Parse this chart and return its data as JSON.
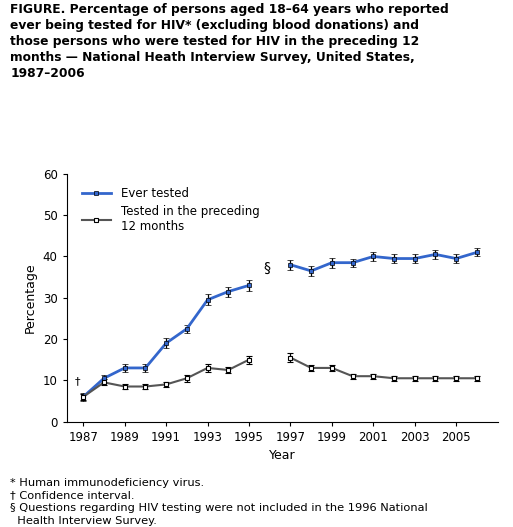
{
  "title_lines": [
    "FIGURE. Percentage of persons aged 18–64 years who reported",
    "ever being tested for HIV* (excluding blood donations) and",
    "those persons who were tested for HIV in the preceding 12",
    "months — National Heath Interview Survey, United States,",
    "1987–2006"
  ],
  "xlabel": "Year",
  "ylabel": "Percentage",
  "ylim": [
    0,
    60
  ],
  "yticks": [
    0,
    10,
    20,
    30,
    40,
    50,
    60
  ],
  "xticks": [
    1987,
    1989,
    1991,
    1993,
    1995,
    1997,
    1999,
    2001,
    2003,
    2005
  ],
  "xlim": [
    1986.2,
    2007.0
  ],
  "ever_tested": {
    "years": [
      1987,
      1988,
      1989,
      1990,
      1991,
      1992,
      1993,
      1994,
      1995,
      1997,
      1998,
      1999,
      2000,
      2001,
      2002,
      2003,
      2004,
      2005,
      2006
    ],
    "values": [
      6.0,
      10.5,
      13.0,
      13.0,
      19.0,
      22.5,
      29.5,
      31.5,
      33.0,
      38.0,
      36.5,
      38.5,
      38.5,
      40.0,
      39.5,
      39.5,
      40.5,
      39.5,
      41.0
    ],
    "err_low": [
      1.0,
      0.8,
      0.9,
      0.9,
      1.2,
      1.0,
      1.3,
      1.2,
      1.3,
      1.2,
      1.3,
      1.2,
      1.0,
      1.1,
      1.0,
      1.0,
      1.1,
      1.0,
      1.0
    ],
    "err_high": [
      1.0,
      0.8,
      0.9,
      0.9,
      1.2,
      1.0,
      1.3,
      1.2,
      1.3,
      1.2,
      1.3,
      1.2,
      1.0,
      1.1,
      1.0,
      1.0,
      1.1,
      1.0,
      1.0
    ],
    "color": "#3366cc",
    "linewidth": 2.0
  },
  "tested_12mo": {
    "years": [
      1987,
      1988,
      1989,
      1990,
      1991,
      1992,
      1993,
      1994,
      1995,
      1997,
      1998,
      1999,
      2000,
      2001,
      2002,
      2003,
      2004,
      2005,
      2006
    ],
    "values": [
      6.0,
      9.5,
      8.5,
      8.5,
      9.0,
      10.5,
      13.0,
      12.5,
      15.0,
      15.5,
      13.0,
      13.0,
      11.0,
      11.0,
      10.5,
      10.5,
      10.5,
      10.5,
      10.5
    ],
    "err_low": [
      0.8,
      0.7,
      0.6,
      0.6,
      0.7,
      0.8,
      0.9,
      0.8,
      1.0,
      1.0,
      0.8,
      0.7,
      0.6,
      0.6,
      0.6,
      0.6,
      0.6,
      0.6,
      0.6
    ],
    "err_high": [
      0.8,
      0.7,
      0.6,
      0.6,
      0.7,
      0.8,
      0.9,
      0.8,
      1.0,
      1.0,
      0.8,
      0.7,
      0.6,
      0.6,
      0.6,
      0.6,
      0.6,
      0.6,
      0.6
    ],
    "color": "#555555",
    "linewidth": 1.5
  },
  "section_symbol_x": 1995.7,
  "section_symbol_y": 35.5,
  "legend_ever": "Ever tested",
  "legend_12mo": "Tested in the preceding\n12 months",
  "footnotes": "* Human immunodeficiency virus.\n† Confidence interval.\n§ Questions regarding HIV testing were not included in the 1996 National\n  Health Interview Survey.",
  "title_fontsize": 8.8,
  "axis_fontsize": 9,
  "tick_fontsize": 8.5,
  "legend_fontsize": 8.5,
  "footnote_fontsize": 8.2
}
